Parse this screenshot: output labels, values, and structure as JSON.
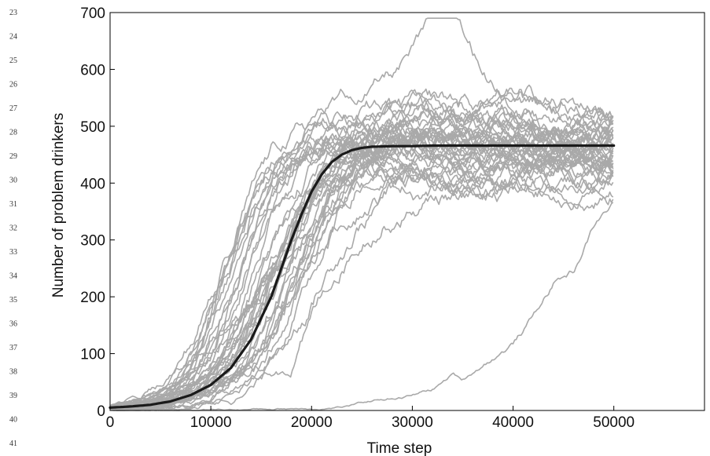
{
  "line_numbers": [
    "23",
    "24",
    "25",
    "26",
    "27",
    "28",
    "29",
    "30",
    "31",
    "32",
    "33",
    "34",
    "35",
    "36",
    "37",
    "38",
    "39",
    "40",
    "41"
  ],
  "chart_data": {
    "type": "line",
    "title": "",
    "xlabel": "Time step",
    "ylabel": "Number of problem drinkers",
    "xlim": [
      0,
      59000
    ],
    "ylim": [
      0,
      700
    ],
    "xticks": [
      0,
      10000,
      20000,
      30000,
      40000,
      50000
    ],
    "yticks": [
      0,
      100,
      200,
      300,
      400,
      500,
      600,
      700
    ],
    "grid": false,
    "legend": "none",
    "colors": {
      "simulations": "#a9a9a9",
      "mean_field": "#1a1a1a",
      "axes": "#000000"
    },
    "series": [
      {
        "role": "mean-field-model",
        "x": [
          0,
          2000,
          4000,
          6000,
          8000,
          10000,
          12000,
          14000,
          16000,
          17000,
          18000,
          19000,
          20000,
          21000,
          22000,
          23000,
          24000,
          25000,
          26000,
          28000,
          30000,
          32000,
          35000,
          40000,
          45000,
          50000
        ],
        "values": [
          5,
          7,
          10,
          16,
          27,
          45,
          75,
          125,
          200,
          250,
          300,
          345,
          385,
          415,
          437,
          450,
          458,
          462,
          464,
          465,
          465,
          466,
          466,
          466,
          466,
          466
        ]
      },
      {
        "role": "simulation-group-early",
        "count": 12,
        "x": [
          0,
          2000,
          4000,
          6000,
          8000,
          10000,
          12000,
          14000,
          16000,
          18000,
          20000,
          22000,
          24000,
          26000,
          28000,
          30000,
          32000,
          35000,
          40000,
          45000,
          50000
        ],
        "values": [
          5,
          10,
          20,
          40,
          80,
          140,
          230,
          330,
          400,
          445,
          470,
          480,
          482,
          478,
          482,
          486,
          481,
          476,
          484,
          479,
          483
        ]
      },
      {
        "role": "simulation-group-middle",
        "count": 16,
        "x": [
          0,
          2000,
          4000,
          6000,
          8000,
          10000,
          12000,
          14000,
          16000,
          18000,
          20000,
          22000,
          24000,
          26000,
          28000,
          30000,
          32000,
          35000,
          40000,
          45000,
          50000
        ],
        "values": [
          5,
          8,
          12,
          22,
          40,
          70,
          110,
          170,
          240,
          310,
          380,
          430,
          455,
          465,
          470,
          468,
          470,
          466,
          470,
          468,
          470
        ]
      },
      {
        "role": "simulation-group-late",
        "count": 12,
        "x": [
          0,
          2000,
          4000,
          6000,
          8000,
          10000,
          12000,
          14000,
          16000,
          18000,
          20000,
          22000,
          24000,
          26000,
          28000,
          30000,
          32000,
          35000,
          40000,
          45000,
          50000
        ],
        "values": [
          5,
          6,
          8,
          12,
          18,
          30,
          50,
          80,
          120,
          180,
          250,
          320,
          380,
          420,
          445,
          455,
          460,
          458,
          462,
          460,
          462
        ]
      },
      {
        "role": "simulation-peak-run",
        "x": [
          0,
          2000,
          4000,
          6000,
          8000,
          10000,
          12000,
          14000,
          16000,
          18000,
          20000,
          22000,
          24000,
          26000,
          28000,
          30000,
          32000,
          33000,
          33500,
          34000,
          35000,
          36000,
          38000,
          40000,
          45000,
          50000
        ],
        "values": [
          5,
          9,
          16,
          30,
          60,
          110,
          190,
          290,
          380,
          450,
          500,
          530,
          545,
          560,
          580,
          610,
          650,
          670,
          680,
          670,
          630,
          600,
          560,
          540,
          520,
          510
        ],
        "visible_maximum": 680
      },
      {
        "role": "simulation-late-run",
        "x": [
          0,
          4000,
          8000,
          12000,
          16000,
          20000,
          24000,
          28000,
          30000,
          32000,
          34000,
          35000,
          36000,
          38000,
          40000,
          42000,
          44000,
          46000,
          48000,
          49000,
          50000
        ],
        "values": [
          5,
          3,
          2,
          3,
          4,
          6,
          12,
          25,
          30,
          40,
          65,
          55,
          70,
          100,
          125,
          170,
          230,
          250,
          330,
          350,
          370
        ]
      }
    ]
  }
}
